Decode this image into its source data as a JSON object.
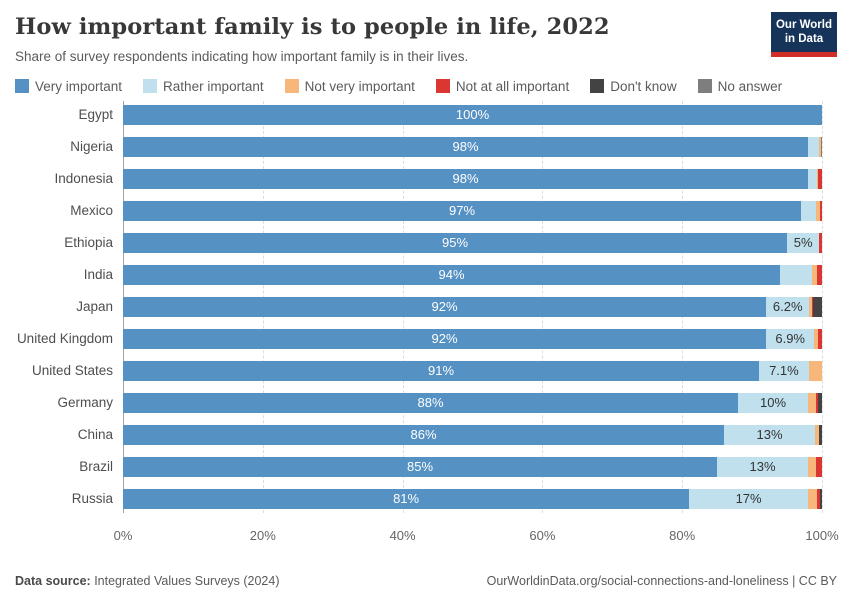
{
  "header": {
    "title": "How important family is to people in life, 2022",
    "subtitle": "Share of survey respondents indicating how important family is in their lives.",
    "logo": {
      "line1": "Our World",
      "line2": "in Data"
    }
  },
  "colors": {
    "very": "#5591c3",
    "rather": "#bfe0ec",
    "not_very": "#f8b77a",
    "not_at_all": "#da3732",
    "dont_know": "#434343",
    "no_answer": "#7e7e7e"
  },
  "legend": [
    {
      "key": "very",
      "label": "Very important"
    },
    {
      "key": "rather",
      "label": "Rather important"
    },
    {
      "key": "not_very",
      "label": "Not very important"
    },
    {
      "key": "not_at_all",
      "label": "Not at all important"
    },
    {
      "key": "dont_know",
      "label": "Don't know"
    },
    {
      "key": "no_answer",
      "label": "No answer"
    }
  ],
  "chart_data": {
    "type": "bar",
    "orientation": "horizontal",
    "stacked": true,
    "unit": "%",
    "xlim": [
      0,
      100
    ],
    "x_ticks": [
      "0%",
      "20%",
      "40%",
      "60%",
      "80%",
      "100%"
    ],
    "series_order": [
      "very",
      "rather",
      "not_very",
      "not_at_all",
      "dont_know",
      "no_answer"
    ],
    "rows": [
      {
        "country": "Egypt",
        "very": 100,
        "rather": 0,
        "not_very": 0,
        "not_at_all": 0,
        "dont_know": 0,
        "no_answer": 0,
        "very_label": "100%",
        "rather_label": ""
      },
      {
        "country": "Nigeria",
        "very": 98,
        "rather": 1.6,
        "not_very": 0.2,
        "not_at_all": 0,
        "dont_know": 0,
        "no_answer": 0.2,
        "very_label": "98%",
        "rather_label": ""
      },
      {
        "country": "Indonesia",
        "very": 98,
        "rather": 1.3,
        "not_very": 0.2,
        "not_at_all": 0.5,
        "dont_know": 0,
        "no_answer": 0,
        "very_label": "98%",
        "rather_label": ""
      },
      {
        "country": "Mexico",
        "very": 97,
        "rather": 2.2,
        "not_very": 0.5,
        "not_at_all": 0.3,
        "dont_know": 0,
        "no_answer": 0,
        "very_label": "97%",
        "rather_label": ""
      },
      {
        "country": "Ethiopia",
        "very": 95,
        "rather": 4.6,
        "not_very": 0,
        "not_at_all": 0.4,
        "dont_know": 0,
        "no_answer": 0,
        "very_label": "95%",
        "rather_label": "5%"
      },
      {
        "country": "India",
        "very": 94,
        "rather": 4.6,
        "not_very": 0.7,
        "not_at_all": 0.7,
        "dont_know": 0,
        "no_answer": 0,
        "very_label": "94%",
        "rather_label": ""
      },
      {
        "country": "Japan",
        "very": 92,
        "rather": 6.2,
        "not_very": 0.3,
        "not_at_all": 0.2,
        "dont_know": 1.3,
        "no_answer": 0,
        "very_label": "92%",
        "rather_label": "6.2%"
      },
      {
        "country": "United Kingdom",
        "very": 92,
        "rather": 6.9,
        "not_very": 0.6,
        "not_at_all": 0.5,
        "dont_know": 0,
        "no_answer": 0,
        "very_label": "92%",
        "rather_label": "6.9%"
      },
      {
        "country": "United States",
        "very": 91,
        "rather": 7.1,
        "not_very": 1.9,
        "not_at_all": 0,
        "dont_know": 0,
        "no_answer": 0,
        "very_label": "91%",
        "rather_label": "7.1%"
      },
      {
        "country": "Germany",
        "very": 88,
        "rather": 10,
        "not_very": 1.2,
        "not_at_all": 0.2,
        "dont_know": 0.6,
        "no_answer": 0,
        "very_label": "88%",
        "rather_label": "10%"
      },
      {
        "country": "China",
        "very": 86,
        "rather": 13,
        "not_very": 0.55,
        "not_at_all": 0,
        "dont_know": 0.45,
        "no_answer": 0,
        "very_label": "86%",
        "rather_label": "13%"
      },
      {
        "country": "Brazil",
        "very": 85,
        "rather": 13,
        "not_very": 1.2,
        "not_at_all": 0.8,
        "dont_know": 0,
        "no_answer": 0,
        "very_label": "85%",
        "rather_label": "13%"
      },
      {
        "country": "Russia",
        "very": 81,
        "rather": 17,
        "not_very": 1.3,
        "not_at_all": 0.4,
        "dont_know": 0.3,
        "no_answer": 0,
        "very_label": "81%",
        "rather_label": "17%"
      }
    ]
  },
  "footer": {
    "source_prefix": "Data source:",
    "source_text": " Integrated Values Surveys (2024)",
    "link_text": "OurWorldinData.org/social-connections-and-loneliness | CC BY"
  }
}
